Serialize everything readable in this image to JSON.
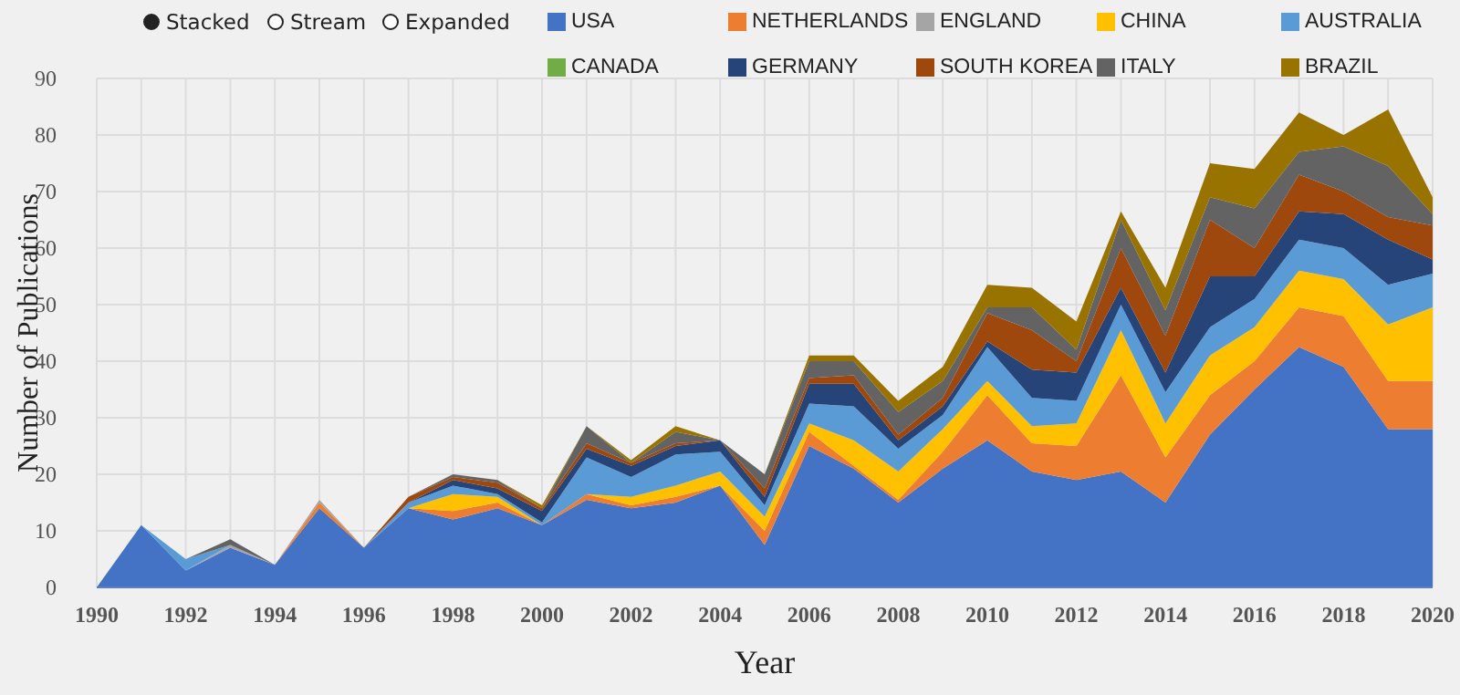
{
  "chart_data": {
    "type": "area",
    "stacked": true,
    "xlabel": "Year",
    "ylabel": "Number of Publications",
    "annotations": [
      "Stacked",
      "Stream",
      "Expanded"
    ],
    "x": [
      1990,
      1991,
      1992,
      1993,
      1994,
      1995,
      1996,
      1997,
      1998,
      1999,
      2000,
      2001,
      2002,
      2003,
      2004,
      2005,
      2006,
      2007,
      2008,
      2009,
      2010,
      2011,
      2012,
      2013,
      2014,
      2015,
      2016,
      2017,
      2018,
      2019,
      2020
    ],
    "xlim": [
      1990,
      2020
    ],
    "xticks": [
      1990,
      {
        "value": 1991,
        "label": null
      },
      1992,
      {
        "value": 1993,
        "label": null
      },
      1994,
      {
        "value": 1995,
        "label": null
      },
      1996,
      {
        "value": 1997,
        "label": null
      },
      1998,
      {
        "value": 1999,
        "label": null
      },
      2000,
      {
        "value": 2001,
        "label": null
      },
      2002,
      {
        "value": 2003,
        "label": null
      },
      2004,
      {
        "value": 2005,
        "label": null
      },
      2006,
      {
        "value": 2007,
        "label": null
      },
      2008,
      {
        "value": 2009,
        "label": null
      },
      2010,
      {
        "value": 2011,
        "label": null
      },
      2012,
      {
        "value": 2013,
        "label": null
      },
      2014,
      {
        "value": 2015,
        "label": null
      },
      2016,
      {
        "value": 2017,
        "label": null
      },
      2018,
      {
        "value": 2019,
        "label": null
      },
      2020
    ],
    "ylim": [
      0,
      90
    ],
    "yticks": [
      0,
      10,
      20,
      30,
      40,
      50,
      60,
      70,
      80,
      90
    ],
    "grid": true,
    "legend": "top",
    "series": [
      {
        "name": "USA",
        "color": "#4472c4",
        "values": [
          0,
          11,
          3,
          7,
          4,
          14,
          7,
          14,
          12,
          14,
          11,
          15.5,
          14,
          15,
          18,
          7.5,
          25,
          21,
          15,
          21,
          26,
          20.5,
          19,
          20.5,
          15,
          27,
          35,
          42.5,
          39,
          28,
          28
        ]
      },
      {
        "name": "NETHERLANDS",
        "color": "#ed7d31",
        "values": [
          null,
          null,
          null,
          null,
          0,
          1,
          0,
          0,
          1.5,
          1,
          0,
          1,
          0.5,
          1,
          0,
          2.5,
          2.5,
          0.5,
          0.5,
          3,
          8,
          5,
          6,
          17,
          8,
          7,
          5,
          7,
          9,
          8.5,
          8.5
        ]
      },
      {
        "name": "ENGLAND",
        "color": "#a5a5a5",
        "values": [
          null,
          null,
          0,
          0.5,
          0,
          0.5,
          0,
          null,
          null,
          null,
          null,
          null,
          null,
          null,
          null,
          null,
          null,
          null,
          null,
          null,
          null,
          null,
          null,
          null,
          null,
          null,
          null,
          null,
          null,
          null,
          null
        ]
      },
      {
        "name": "CHINA",
        "color": "#ffc000",
        "values": [
          null,
          null,
          null,
          null,
          null,
          null,
          null,
          0,
          3,
          1,
          0,
          0,
          1.5,
          2,
          2.5,
          2.5,
          1.5,
          4.5,
          5,
          4,
          2.5,
          3,
          4,
          8,
          6,
          7,
          6,
          6.5,
          6.5,
          10,
          13
        ]
      },
      {
        "name": "AUSTRALIA",
        "color": "#5b9bd5",
        "values": [
          null,
          0,
          2,
          0,
          null,
          null,
          0,
          1,
          1.5,
          0.5,
          0.5,
          6.5,
          3.5,
          5.5,
          3.5,
          2,
          3.5,
          6,
          4,
          2.5,
          6,
          5,
          4,
          4.5,
          5.5,
          5,
          5,
          5.5,
          5.5,
          7,
          6
        ]
      },
      {
        "name": "CANADA",
        "color": "#70ad47",
        "values": [
          null,
          null,
          null,
          null,
          null,
          null,
          null,
          null,
          null,
          null,
          null,
          null,
          null,
          null,
          null,
          null,
          null,
          null,
          null,
          null,
          null,
          null,
          null,
          null,
          null,
          null,
          null,
          null,
          null,
          null,
          null
        ]
      },
      {
        "name": "GERMANY",
        "color": "#264478",
        "values": [
          null,
          null,
          null,
          null,
          null,
          null,
          null,
          0,
          1,
          1,
          2,
          1.5,
          2,
          1.5,
          2,
          1.5,
          3.5,
          4,
          1.5,
          1.5,
          1,
          5,
          5,
          3,
          3.5,
          9,
          4,
          5,
          6,
          8,
          2.5
        ]
      },
      {
        "name": "SOUTH KOREA",
        "color": "#9e480e",
        "values": [
          null,
          null,
          null,
          null,
          null,
          null,
          0,
          1,
          0.5,
          1,
          0.5,
          1,
          0.5,
          0.5,
          0,
          1.5,
          1,
          1.5,
          1,
          1.5,
          5,
          7,
          2,
          7,
          6.5,
          10,
          5,
          6.5,
          4,
          4,
          6
        ]
      },
      {
        "name": "ITALY",
        "color": "#636363",
        "values": [
          null,
          null,
          0,
          1,
          0,
          null,
          null,
          0,
          0.5,
          0.5,
          0,
          3,
          0,
          2,
          0,
          2.5,
          3,
          2.5,
          4,
          3,
          1,
          4,
          2,
          5,
          4.5,
          4,
          7,
          4,
          8,
          9,
          2
        ]
      },
      {
        "name": "BRAZIL",
        "color": "#997300",
        "values": [
          null,
          null,
          null,
          null,
          null,
          null,
          null,
          null,
          null,
          0,
          0.5,
          0,
          0.5,
          1,
          0,
          0,
          1,
          1,
          2,
          2.5,
          4,
          3.5,
          5,
          1.5,
          4,
          6,
          7,
          7,
          2,
          10,
          3
        ]
      }
    ]
  }
}
